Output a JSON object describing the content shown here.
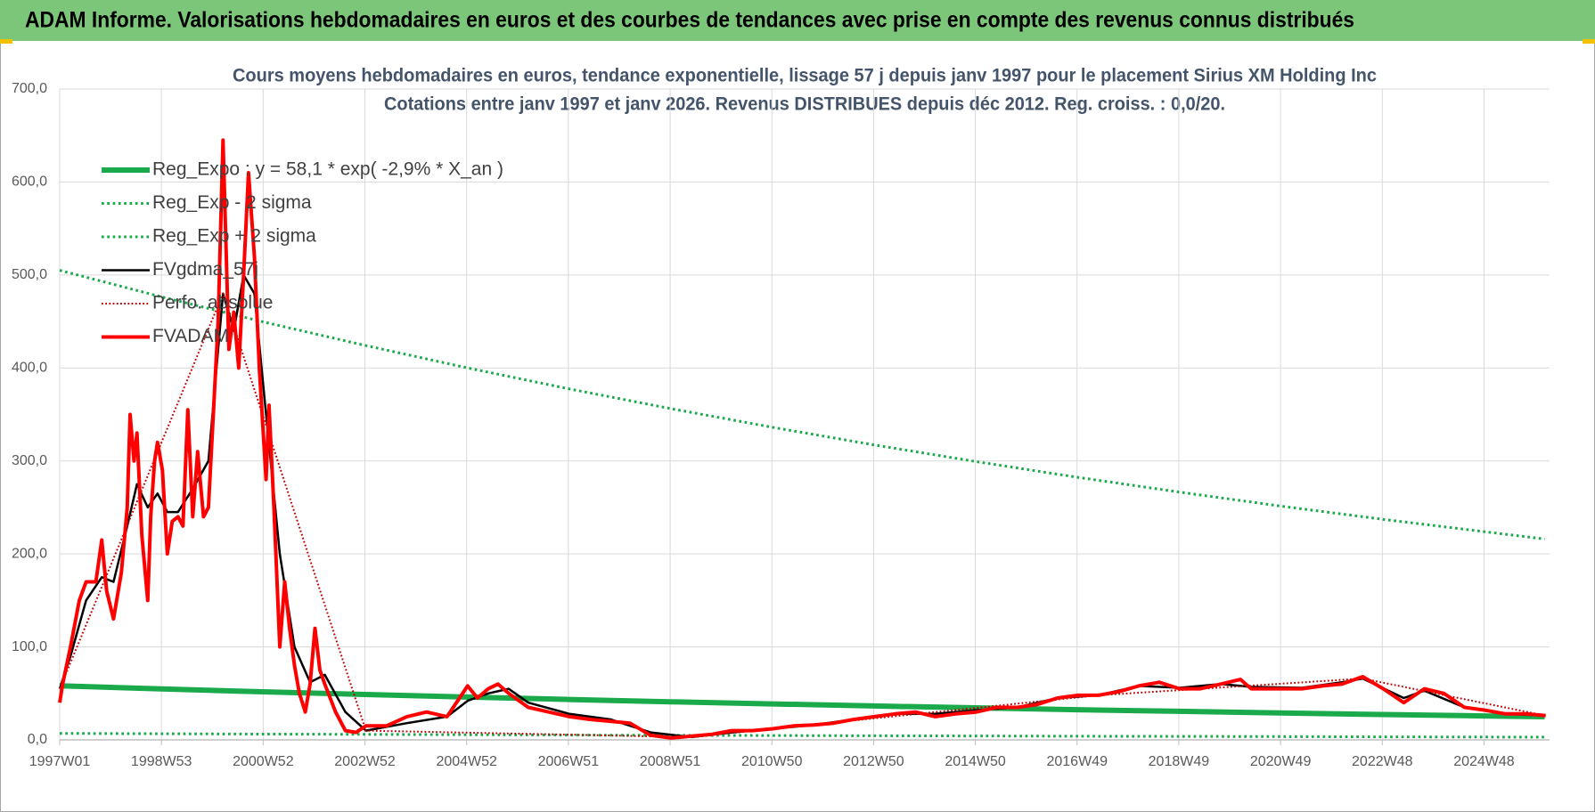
{
  "header": {
    "title": "ADAM Informe. Valorisations hebdomadaires en euros et des courbes de tendances avec prise en compte des revenus connus distribués"
  },
  "chart_data": {
    "type": "line",
    "title": "Cours moyens hebdomadaires en euros, tendance exponentielle, lissage 57 j depuis janv 1997 pour le placement Sirius XM Holding Inc",
    "subtitle": "Cotations entre janv 1997 et janv 2026. Revenus DISTRIBUES depuis déc 2012. Reg. croiss. : 0,0/20.",
    "xlim": [
      0,
      1523
    ],
    "xticks": [
      {
        "value": 0,
        "label": "1997W01"
      },
      {
        "value": 104,
        "label": "1998W53"
      },
      {
        "value": 208,
        "label": "2000W52"
      },
      {
        "value": 312,
        "label": "2002W52"
      },
      {
        "value": 416,
        "label": "2004W52"
      },
      {
        "value": 520,
        "label": "2006W51"
      },
      {
        "value": 624,
        "label": "2008W51"
      },
      {
        "value": 728,
        "label": "2010W50"
      },
      {
        "value": 832,
        "label": "2012W50"
      },
      {
        "value": 936,
        "label": "2014W50"
      },
      {
        "value": 1040,
        "label": "2016W49"
      },
      {
        "value": 1144,
        "label": "2018W49"
      },
      {
        "value": 1248,
        "label": "2020W49"
      },
      {
        "value": 1352,
        "label": "2022W48"
      },
      {
        "value": 1456,
        "label": "2024W48"
      }
    ],
    "ylim": [
      0,
      700
    ],
    "yticks": [
      {
        "value": 0,
        "label": "0,0"
      },
      {
        "value": 100,
        "label": "100,0"
      },
      {
        "value": 200,
        "label": "200,0"
      },
      {
        "value": 300,
        "label": "300,0"
      },
      {
        "value": 400,
        "label": "400,0"
      },
      {
        "value": 500,
        "label": "500,0"
      },
      {
        "value": 600,
        "label": "600,0"
      },
      {
        "value": 700,
        "label": "700,0"
      }
    ],
    "grid": true,
    "legend": "upper left",
    "series": [
      {
        "name": "Reg_Expo : y = 58,1 * exp( -2,9% *  X_an )",
        "color": "#1aaa4b",
        "width": 6,
        "dash": "solid",
        "x": [
          0,
          104,
          208,
          312,
          416,
          520,
          624,
          728,
          832,
          936,
          1040,
          1144,
          1248,
          1352,
          1456,
          1518
        ],
        "values": [
          58.1,
          54.8,
          51.7,
          48.8,
          46.1,
          43.5,
          41.0,
          38.7,
          36.5,
          34.5,
          32.5,
          30.7,
          29.0,
          27.3,
          25.8,
          24.9
        ]
      },
      {
        "name": "Reg_Exp - 2 sigma",
        "color": "#1aaa4b",
        "width": 3,
        "dash": "dotted",
        "x": [
          0,
          104,
          208,
          312,
          416,
          520,
          624,
          728,
          832,
          936,
          1040,
          1144,
          1248,
          1352,
          1456,
          1518
        ],
        "values": [
          7.0,
          6.6,
          6.2,
          5.9,
          5.6,
          5.2,
          4.9,
          4.7,
          4.4,
          4.2,
          3.9,
          3.7,
          3.5,
          3.3,
          3.1,
          3.0
        ]
      },
      {
        "name": "Reg_Exp + 2 sigma",
        "color": "#1aaa4b",
        "width": 3,
        "dash": "dotted",
        "x": [
          0,
          104,
          208,
          312,
          416,
          520,
          624,
          728,
          832,
          936,
          1040,
          1144,
          1248,
          1352,
          1456,
          1518
        ],
        "values": [
          505,
          476.5,
          449.6,
          424.3,
          400.3,
          377.7,
          356.4,
          336.3,
          317.3,
          299.4,
          282.5,
          266.6,
          251.5,
          237.3,
          224.0,
          216.0
        ]
      },
      {
        "name": "FVgdma_57j",
        "color": "#000000",
        "width": 2.5,
        "dash": "solid",
        "x": [
          0,
          11,
          27,
          43,
          55,
          69,
          79,
          90,
          100,
          110,
          121,
          136,
          152,
          167,
          178,
          188,
          199,
          211,
          225,
          240,
          256,
          271,
          292,
          313,
          355,
          396,
          417,
          438,
          459,
          479,
          521,
          563,
          604,
          646,
          687,
          729,
          771,
          812,
          854,
          895,
          937,
          979,
          1020,
          1062,
          1103,
          1145,
          1187,
          1218,
          1270,
          1311,
          1332,
          1374,
          1395,
          1436,
          1478,
          1519
        ],
        "values": [
          55,
          90,
          150,
          175,
          170,
          230,
          275,
          250,
          265,
          245,
          245,
          270,
          300,
          480,
          440,
          500,
          480,
          350,
          200,
          100,
          62,
          70,
          30,
          10,
          18,
          25,
          42,
          50,
          55,
          40,
          28,
          22,
          8,
          3,
          8,
          12,
          16,
          22,
          28,
          28,
          32,
          35,
          45,
          48,
          58,
          56,
          60,
          57,
          56,
          62,
          66,
          45,
          53,
          35,
          28,
          26
        ]
      },
      {
        "name": "Perfo. absolue",
        "color": "#c00000",
        "width": 2,
        "dash": "dotted",
        "x": [
          0,
          167,
          313,
          646,
          1062,
          1332,
          1519
        ],
        "values": [
          55,
          480,
          10,
          3,
          48,
          66,
          26
        ]
      },
      {
        "name": "FVADAM",
        "color": "#ff0000",
        "width": 4,
        "dash": "solid",
        "x": [
          0,
          3,
          11,
          20,
          27,
          37,
          43,
          48,
          55,
          63,
          69,
          72,
          76,
          79,
          84,
          90,
          93,
          97,
          100,
          105,
          110,
          115,
          121,
          126,
          131,
          136,
          141,
          147,
          152,
          157,
          162,
          167,
          173,
          178,
          183,
          188,
          193,
          199,
          204,
          211,
          214,
          219,
          225,
          230,
          235,
          240,
          245,
          251,
          256,
          261,
          266,
          271,
          282,
          292,
          303,
          313,
          334,
          355,
          375,
          396,
          417,
          427,
          438,
          448,
          459,
          479,
          500,
          521,
          542,
          563,
          583,
          604,
          625,
          646,
          667,
          687,
          708,
          729,
          750,
          771,
          791,
          812,
          833,
          854,
          875,
          895,
          916,
          937,
          958,
          979,
          999,
          1020,
          1041,
          1062,
          1083,
          1103,
          1124,
          1145,
          1166,
          1187,
          1207,
          1218,
          1239,
          1270,
          1291,
          1311,
          1332,
          1353,
          1374,
          1395,
          1415,
          1436,
          1457,
          1478,
          1499,
          1519
        ],
        "values": [
          40,
          60,
          100,
          150,
          170,
          170,
          215,
          160,
          130,
          180,
          250,
          350,
          300,
          330,
          220,
          150,
          240,
          300,
          320,
          290,
          200,
          235,
          240,
          230,
          355,
          240,
          310,
          240,
          250,
          350,
          450,
          645,
          420,
          460,
          400,
          500,
          610,
          520,
          400,
          280,
          360,
          250,
          100,
          170,
          120,
          80,
          50,
          30,
          60,
          120,
          75,
          60,
          30,
          10,
          8,
          15,
          15,
          25,
          30,
          25,
          58,
          45,
          55,
          60,
          50,
          35,
          30,
          25,
          22,
          20,
          18,
          5,
          2,
          4,
          6,
          10,
          10,
          12,
          15,
          16,
          18,
          22,
          25,
          28,
          30,
          25,
          28,
          30,
          35,
          35,
          38,
          45,
          48,
          48,
          52,
          58,
          62,
          55,
          55,
          60,
          65,
          55,
          55,
          55,
          58,
          60,
          68,
          55,
          40,
          55,
          50,
          35,
          32,
          28,
          28,
          26
        ]
      }
    ]
  }
}
